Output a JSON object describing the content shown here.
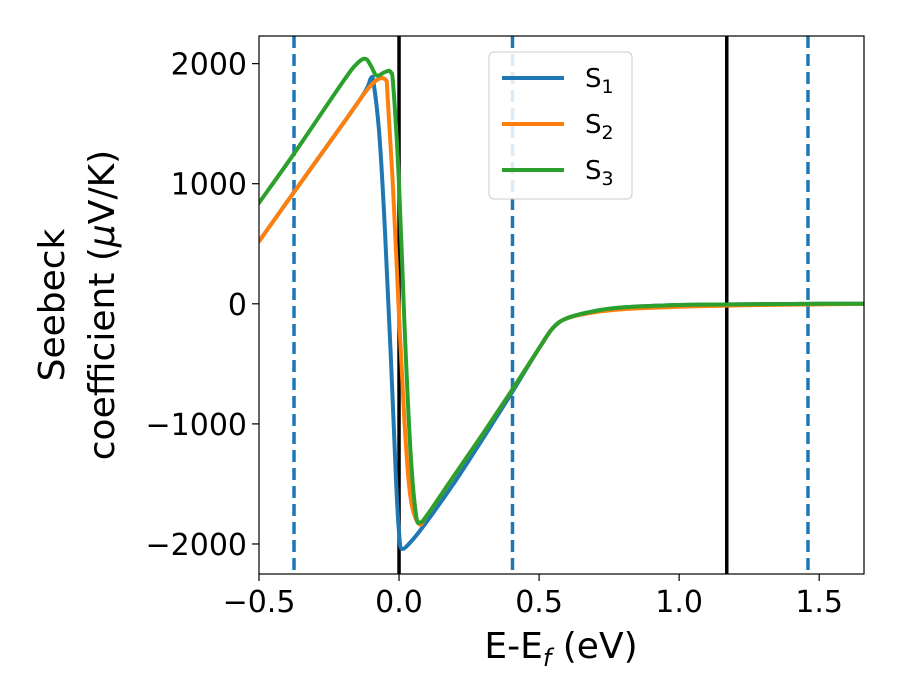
{
  "chart_data": {
    "type": "line",
    "xlabel": {
      "main": "E-E",
      "sub": "f",
      "unit": " (eV)"
    },
    "ylabel": {
      "line1": "Seebeck",
      "line2": "coefficient  (",
      "mu": "μ",
      "unit": "V/K)"
    },
    "xlim": [
      -0.5,
      1.66
    ],
    "ylim": [
      -2250,
      2230
    ],
    "xticks": [
      -0.5,
      0.0,
      0.5,
      1.0,
      1.5
    ],
    "xtick_labels": [
      "−0.5",
      "0.0",
      "0.5",
      "1.0",
      "1.5"
    ],
    "yticks": [
      -2000,
      -1000,
      0,
      1000,
      2000
    ],
    "ytick_labels": [
      "−2000",
      "−1000",
      "0",
      "1000",
      "2000"
    ],
    "legend_position": "upper-center",
    "vlines_solid": [
      0.0,
      1.17
    ],
    "vlines_dashed": [
      -0.375,
      0.405,
      1.46
    ],
    "series": [
      {
        "name": "S",
        "subscript": "1",
        "color": "#1f77b4",
        "points": [
          [
            -0.5,
            520
          ],
          [
            -0.375,
            930
          ],
          [
            -0.2,
            1500
          ],
          [
            -0.12,
            1770
          ],
          [
            -0.1,
            1880
          ],
          [
            -0.09,
            1830
          ],
          [
            -0.07,
            1400
          ],
          [
            -0.05,
            600
          ],
          [
            -0.03,
            -400
          ],
          [
            -0.01,
            -1500
          ],
          [
            0.0,
            -1900
          ],
          [
            0.01,
            -2040
          ],
          [
            0.05,
            -1960
          ],
          [
            0.1,
            -1810
          ],
          [
            0.2,
            -1480
          ],
          [
            0.3,
            -1120
          ],
          [
            0.4,
            -750
          ],
          [
            0.5,
            -370
          ],
          [
            0.55,
            -200
          ],
          [
            0.6,
            -120
          ],
          [
            0.7,
            -60
          ],
          [
            0.8,
            -30
          ],
          [
            1.0,
            -10
          ],
          [
            1.2,
            -5
          ],
          [
            1.5,
            0
          ],
          [
            1.66,
            0
          ]
        ]
      },
      {
        "name": "S",
        "subscript": "2",
        "color": "#ff7f0e",
        "points": [
          [
            -0.5,
            520
          ],
          [
            -0.375,
            930
          ],
          [
            -0.2,
            1500
          ],
          [
            -0.1,
            1820
          ],
          [
            -0.05,
            1870
          ],
          [
            -0.04,
            1700
          ],
          [
            -0.02,
            900
          ],
          [
            0.0,
            -100
          ],
          [
            0.02,
            -1000
          ],
          [
            0.04,
            -1600
          ],
          [
            0.07,
            -1830
          ],
          [
            0.1,
            -1760
          ],
          [
            0.2,
            -1420
          ],
          [
            0.3,
            -1080
          ],
          [
            0.4,
            -730
          ],
          [
            0.5,
            -370
          ],
          [
            0.55,
            -200
          ],
          [
            0.6,
            -120
          ],
          [
            0.7,
            -70
          ],
          [
            0.8,
            -45
          ],
          [
            1.0,
            -25
          ],
          [
            1.17,
            -15
          ],
          [
            1.3,
            -10
          ],
          [
            1.5,
            -5
          ],
          [
            1.66,
            0
          ]
        ]
      },
      {
        "name": "S",
        "subscript": "3",
        "color": "#2ca02c",
        "points": [
          [
            -0.5,
            840
          ],
          [
            -0.375,
            1250
          ],
          [
            -0.2,
            1850
          ],
          [
            -0.15,
            2000
          ],
          [
            -0.12,
            2040
          ],
          [
            -0.1,
            1980
          ],
          [
            -0.08,
            1900
          ],
          [
            -0.05,
            1930
          ],
          [
            -0.03,
            1930
          ],
          [
            -0.02,
            1800
          ],
          [
            0.0,
            1000
          ],
          [
            0.02,
            -200
          ],
          [
            0.04,
            -1200
          ],
          [
            0.06,
            -1750
          ],
          [
            0.075,
            -1820
          ],
          [
            0.1,
            -1760
          ],
          [
            0.2,
            -1420
          ],
          [
            0.3,
            -1080
          ],
          [
            0.4,
            -730
          ],
          [
            0.5,
            -370
          ],
          [
            0.55,
            -200
          ],
          [
            0.6,
            -120
          ],
          [
            0.7,
            -60
          ],
          [
            0.8,
            -30
          ],
          [
            1.0,
            -10
          ],
          [
            1.2,
            -5
          ],
          [
            1.5,
            0
          ],
          [
            1.66,
            0
          ]
        ]
      }
    ]
  }
}
